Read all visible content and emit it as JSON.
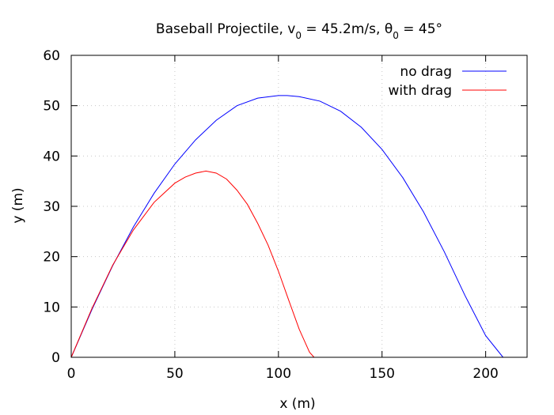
{
  "chart_data": {
    "type": "line",
    "title": {
      "prefix": "Baseball Projectile, v",
      "v_sub": "0",
      "mid": " = 45.2m/s, θ",
      "theta_sub": "0",
      "suffix": " = 45°"
    },
    "xlabel": "x (m)",
    "ylabel": "y (m)",
    "xlim": [
      0,
      220
    ],
    "ylim": [
      0,
      60
    ],
    "xticks": [
      0,
      50,
      100,
      150,
      200
    ],
    "yticks": [
      0,
      10,
      20,
      30,
      40,
      50,
      60
    ],
    "grid": true,
    "legend_position": "top-right",
    "series": [
      {
        "name": "no drag",
        "color": "#0000ff",
        "x": [
          0,
          10,
          20,
          30,
          40,
          50,
          60,
          70,
          80,
          90,
          100,
          104.2,
          110,
          120,
          130,
          140,
          150,
          160,
          170,
          180,
          190,
          200,
          208.4
        ],
        "y": [
          0,
          9.5,
          18.2,
          25.9,
          32.6,
          38.4,
          43.2,
          47.1,
          50.0,
          51.5,
          52.0,
          52.0,
          51.8,
          50.9,
          48.9,
          45.7,
          41.3,
          35.7,
          28.9,
          21.0,
          12.3,
          4.3,
          0
        ]
      },
      {
        "name": "with drag",
        "color": "#ff0000",
        "x": [
          0,
          10,
          20,
          30,
          40,
          50,
          55,
          60,
          65,
          70,
          75,
          80,
          85,
          90,
          95,
          100,
          105,
          110,
          115,
          117.2
        ],
        "y": [
          0,
          9.7,
          18.3,
          25.3,
          30.8,
          34.6,
          35.8,
          36.6,
          37.0,
          36.6,
          35.4,
          33.2,
          30.4,
          26.6,
          22.3,
          17.1,
          11.3,
          5.6,
          1.0,
          0
        ]
      }
    ]
  }
}
